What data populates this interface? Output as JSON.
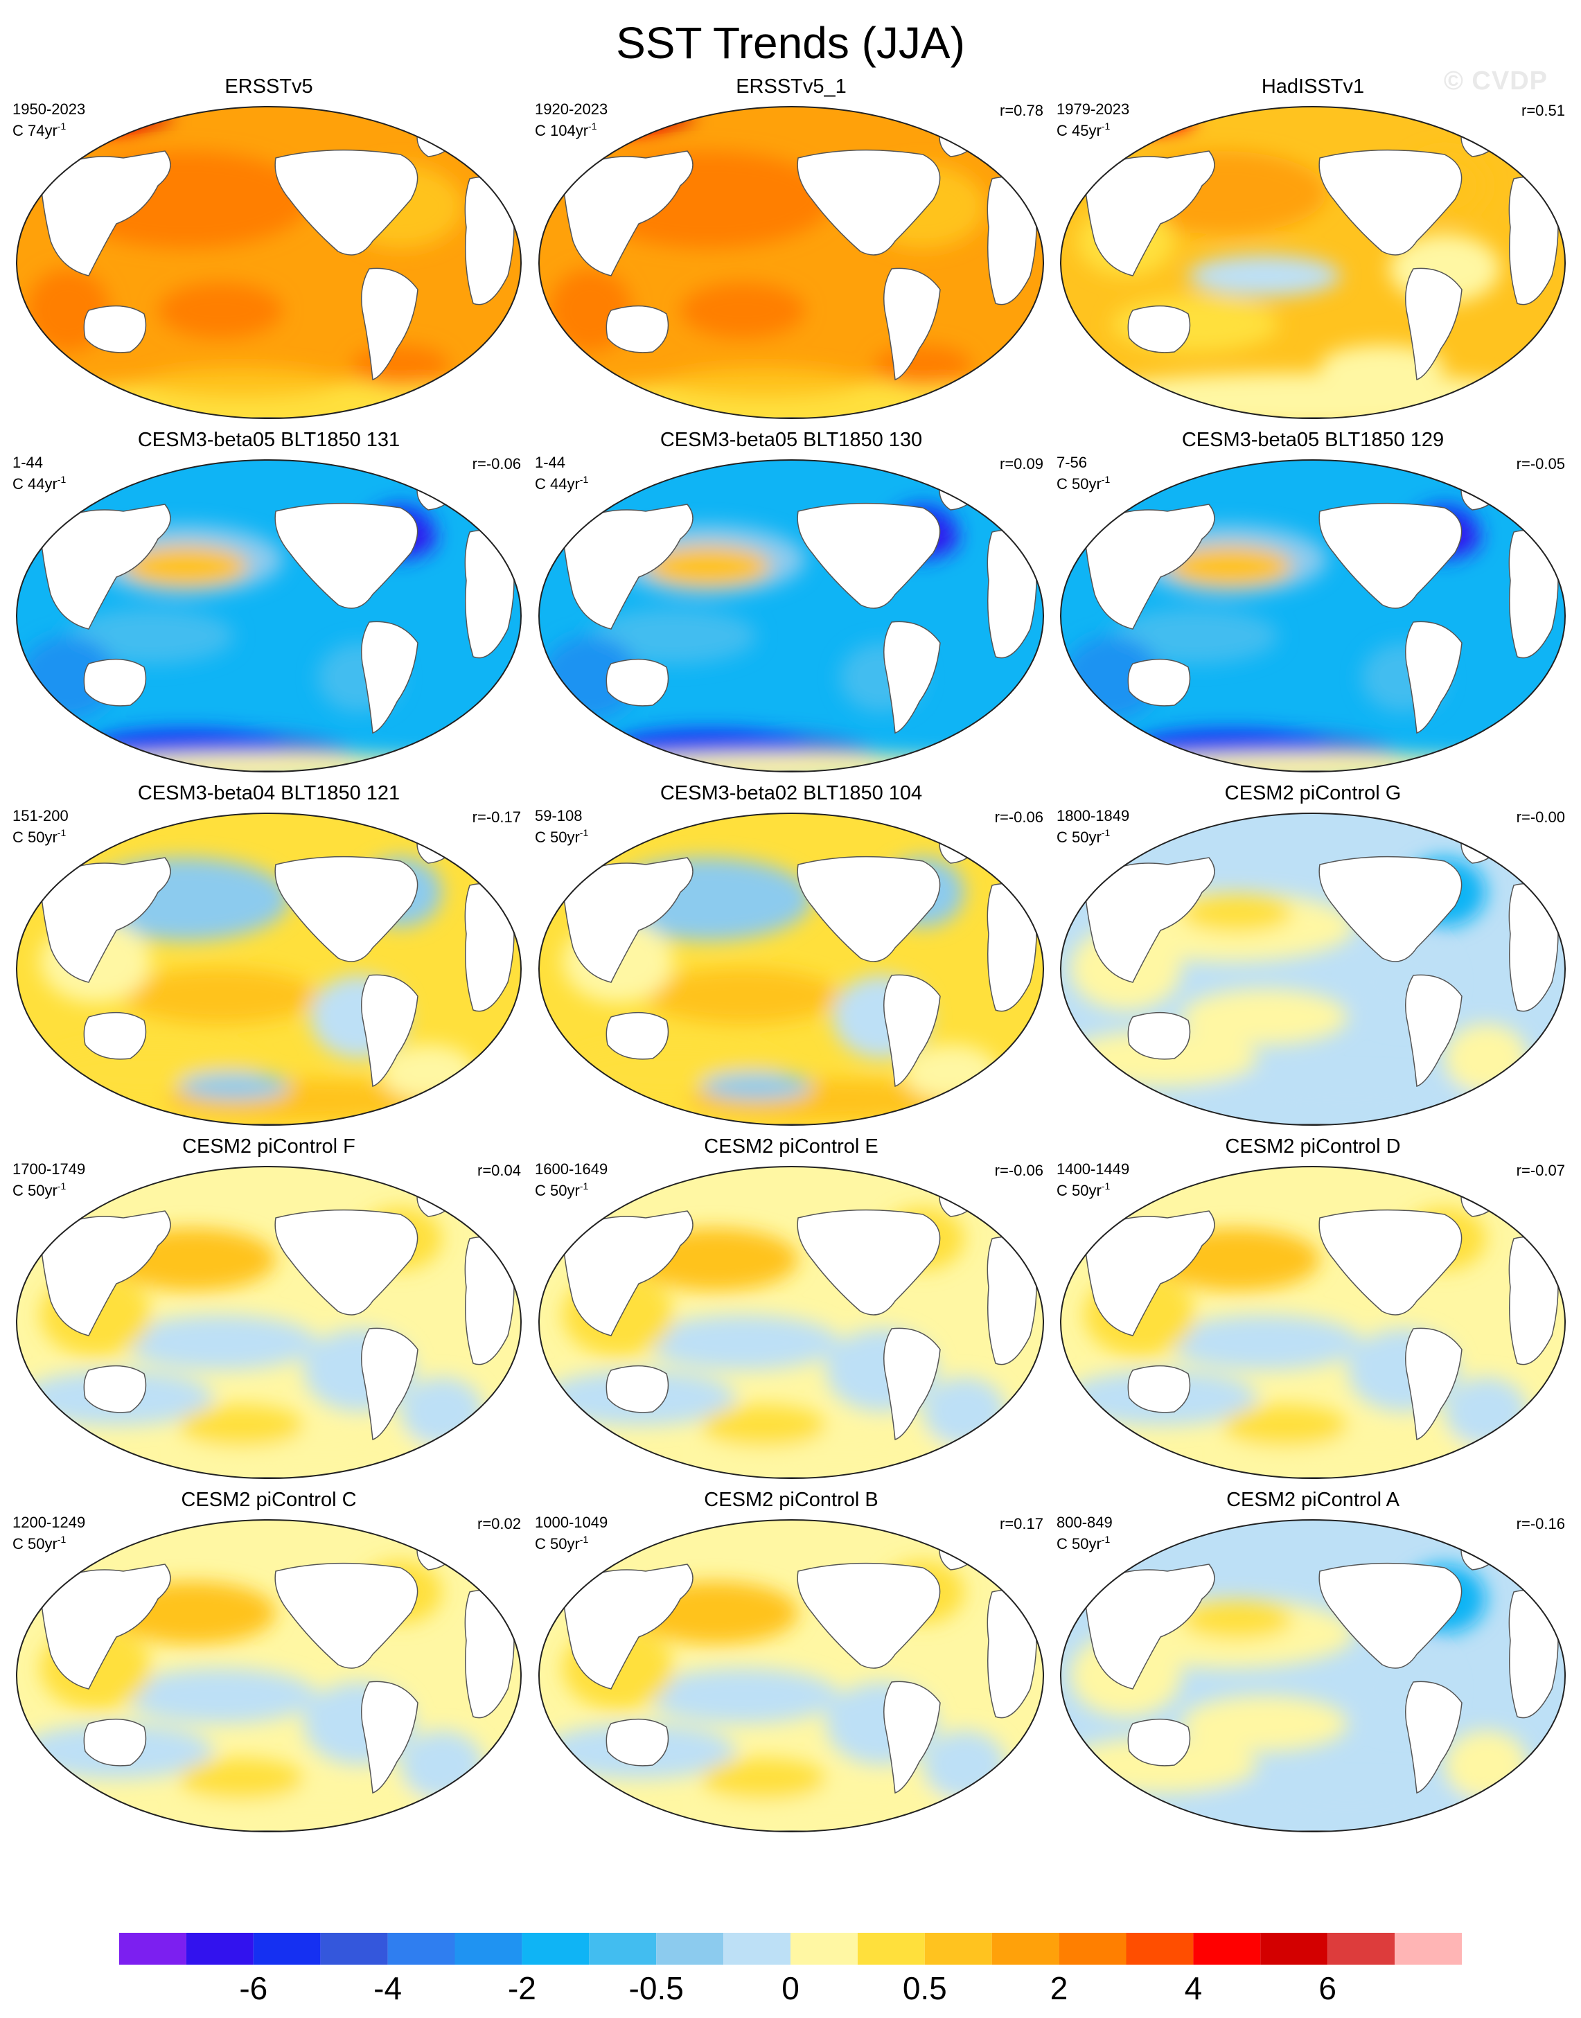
{
  "title": "SST Trends (JJA)",
  "watermark": "© CVDP",
  "colors": {
    "land": "#ffffff",
    "coast": "#555555",
    "frame": "#222222"
  },
  "panels": [
    {
      "title": "ERSSTv5",
      "period": "1950-2023",
      "units_base": "C 74yr",
      "units_exp": "-1",
      "r": "",
      "pattern": "warm-strong"
    },
    {
      "title": "ERSSTv5_1",
      "period": "1920-2023",
      "units_base": "C 104yr",
      "units_exp": "-1",
      "r": "r=0.78",
      "pattern": "warm-strong"
    },
    {
      "title": "HadISSTv1",
      "period": "1979-2023",
      "units_base": "C 45yr",
      "units_exp": "-1",
      "r": "r=0.51",
      "pattern": "warm-mixed"
    },
    {
      "title": "CESM3-beta05 BLT1850 131",
      "period": "1-44",
      "units_base": "C 44yr",
      "units_exp": "-1",
      "r": "r=-0.06",
      "pattern": "cold-strong"
    },
    {
      "title": "CESM3-beta05 BLT1850 130",
      "period": "1-44",
      "units_base": "C 44yr",
      "units_exp": "-1",
      "r": "r=0.09",
      "pattern": "cold-strong"
    },
    {
      "title": "CESM3-beta05 BLT1850 129",
      "period": "7-56",
      "units_base": "C 50yr",
      "units_exp": "-1",
      "r": "r=-0.05",
      "pattern": "cold-strong"
    },
    {
      "title": "CESM3-beta04 BLT1850 121",
      "period": "151-200",
      "units_base": "C 50yr",
      "units_exp": "-1",
      "r": "r=-0.17",
      "pattern": "mixed-warm"
    },
    {
      "title": "CESM3-beta02 BLT1850 104",
      "period": "59-108",
      "units_base": "C 50yr",
      "units_exp": "-1",
      "r": "r=-0.06",
      "pattern": "mixed-warm"
    },
    {
      "title": "CESM2 piControl G",
      "period": "1800-1849",
      "units_base": "C 50yr",
      "units_exp": "-1",
      "r": "r=-0.00",
      "pattern": "mixed-cool"
    },
    {
      "title": "CESM2 piControl F",
      "period": "1700-1749",
      "units_base": "C 50yr",
      "units_exp": "-1",
      "r": "r=0.04",
      "pattern": "mixed"
    },
    {
      "title": "CESM2 piControl E",
      "period": "1600-1649",
      "units_base": "C 50yr",
      "units_exp": "-1",
      "r": "r=-0.06",
      "pattern": "mixed"
    },
    {
      "title": "CESM2 piControl D",
      "period": "1400-1449",
      "units_base": "C 50yr",
      "units_exp": "-1",
      "r": "r=-0.07",
      "pattern": "mixed"
    },
    {
      "title": "CESM2 piControl C",
      "period": "1200-1249",
      "units_base": "C 50yr",
      "units_exp": "-1",
      "r": "r=0.02",
      "pattern": "mixed"
    },
    {
      "title": "CESM2 piControl B",
      "period": "1000-1049",
      "units_base": "C 50yr",
      "units_exp": "-1",
      "r": "r=0.17",
      "pattern": "mixed"
    },
    {
      "title": "CESM2 piControl A",
      "period": "800-849",
      "units_base": "C 50yr",
      "units_exp": "-1",
      "r": "r=-0.16",
      "pattern": "mixed-cool"
    }
  ],
  "colorbar": {
    "colors": [
      "#7c1ff0",
      "#3212ee",
      "#1530f2",
      "#3457dc",
      "#2f7ef0",
      "#1f93f2",
      "#0fb4f5",
      "#42bdf0",
      "#8ccbee",
      "#bde0f6",
      "#fff7a3",
      "#ffe03c",
      "#ffc31f",
      "#ffa10a",
      "#ff7f00",
      "#ff4e00",
      "#ff0000",
      "#d30000",
      "#dd3c3c",
      "#ffb5b5"
    ],
    "labels": [
      {
        "text": "-6",
        "boundary": 2
      },
      {
        "text": "-4",
        "boundary": 4
      },
      {
        "text": "-2",
        "boundary": 6
      },
      {
        "text": "-0.5",
        "boundary": 8
      },
      {
        "text": "0",
        "boundary": 10
      },
      {
        "text": "0.5",
        "boundary": 12
      },
      {
        "text": "2",
        "boundary": 14
      },
      {
        "text": "4",
        "boundary": 16
      },
      {
        "text": "6",
        "boundary": 18
      }
    ]
  }
}
